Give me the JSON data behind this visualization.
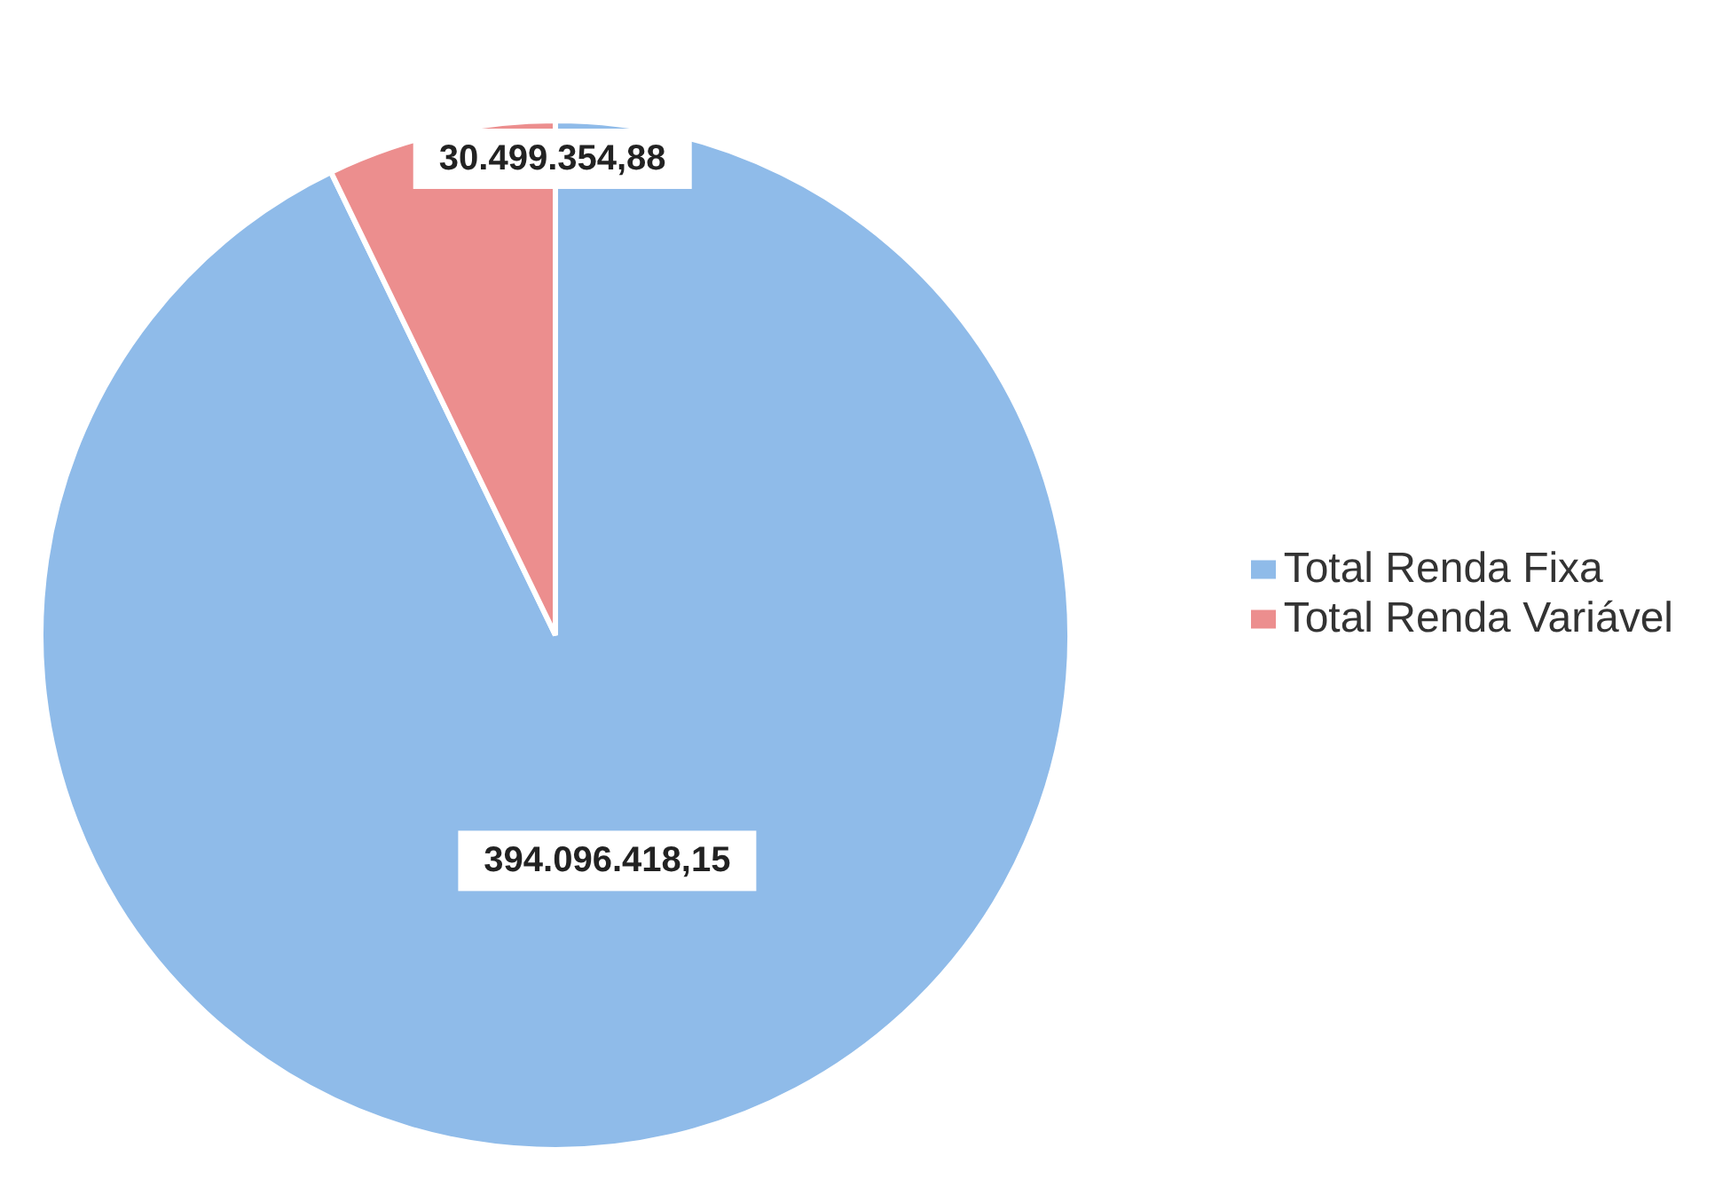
{
  "chart_data": {
    "type": "pie",
    "categories": [
      "Total Renda Fixa",
      "Total Renda Variável"
    ],
    "values": [
      394096418.15,
      30499354.88
    ],
    "value_labels": [
      "394.096.418,15",
      "30.499.354,88"
    ],
    "colors": [
      "#8fbbe9",
      "#ec8e8e"
    ],
    "legend": "right"
  }
}
